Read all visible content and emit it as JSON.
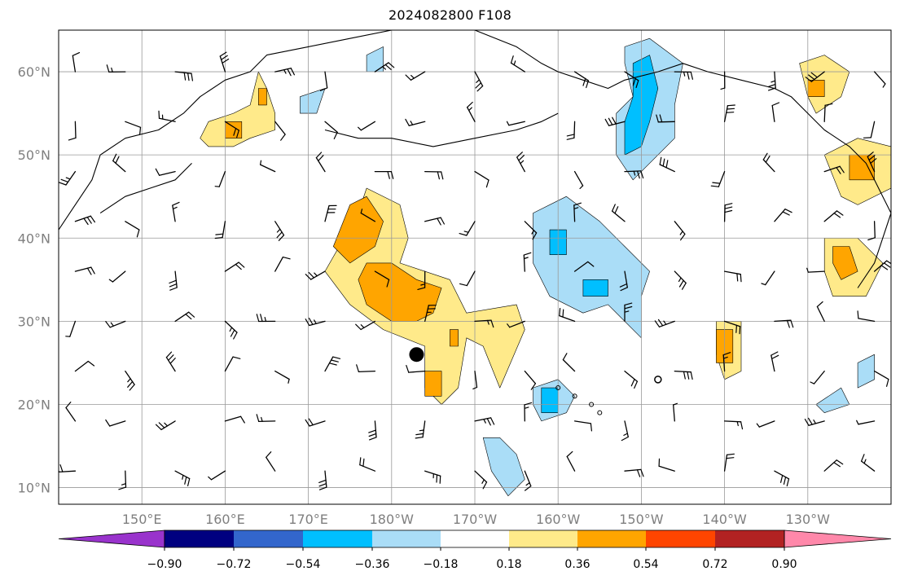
{
  "title": "2024082800 F108",
  "map": {
    "lon_range": [
      140,
      240
    ],
    "lat_range": [
      8,
      65
    ],
    "lat_ticks": [
      {
        "value": 10,
        "label": "10°N"
      },
      {
        "value": 20,
        "label": "20°N"
      },
      {
        "value": 30,
        "label": "30°N"
      },
      {
        "value": 40,
        "label": "40°N"
      },
      {
        "value": 50,
        "label": "50°N"
      },
      {
        "value": 60,
        "label": "60°N"
      }
    ],
    "lon_ticks": [
      {
        "value": 150,
        "label": "150°E"
      },
      {
        "value": 160,
        "label": "160°E"
      },
      {
        "value": 170,
        "label": "170°E"
      },
      {
        "value": 180,
        "label": "180°W"
      },
      {
        "value": 190,
        "label": "170°W"
      },
      {
        "value": 200,
        "label": "160°W"
      },
      {
        "value": 210,
        "label": "150°W"
      },
      {
        "value": 220,
        "label": "140°W"
      },
      {
        "value": 230,
        "label": "130°W"
      }
    ],
    "gridlines": true,
    "marker": {
      "lon": 183,
      "lat": 26,
      "symbol": "filled-circle",
      "color": "#000000"
    },
    "small_open_marker": {
      "lon": 212,
      "lat": 23
    }
  },
  "colorbar": {
    "colors": [
      "#9933cc",
      "#000080",
      "#3366cc",
      "#00bfff",
      "#aaddf7",
      "#ffffff",
      "#ffea8a",
      "#ffa500",
      "#ff4500",
      "#b22222",
      "#ff88aa"
    ],
    "tick_labels": [
      "−0.90",
      "−0.72",
      "−0.54",
      "−0.36",
      "−0.18",
      "0.18",
      "0.36",
      "0.54",
      "0.72",
      "0.90"
    ],
    "extend": "both"
  },
  "anomaly_fields": [
    {
      "name": "positive-central-pacific",
      "color": "#ffea8a",
      "outline": [
        [
          -4,
          43
        ],
        [
          -3,
          46
        ],
        [
          1,
          44
        ],
        [
          2,
          40
        ],
        [
          1,
          37
        ],
        [
          7,
          35
        ],
        [
          9,
          31
        ],
        [
          15,
          32
        ],
        [
          16,
          29
        ],
        [
          13,
          22
        ],
        [
          11,
          27
        ],
        [
          9,
          28
        ],
        [
          8,
          22
        ],
        [
          6,
          20
        ],
        [
          4,
          22
        ],
        [
          4,
          27
        ],
        [
          -1,
          29
        ],
        [
          -5,
          32
        ],
        [
          -8,
          36
        ]
      ]
    },
    {
      "name": "positive-central-core-west",
      "color": "#ffa500",
      "outline": [
        [
          -5,
          44
        ],
        [
          -3,
          45
        ],
        [
          -1,
          42
        ],
        [
          -2,
          39
        ],
        [
          -5,
          37
        ],
        [
          -7,
          39
        ]
      ]
    },
    {
      "name": "positive-central-core-main",
      "color": "#ffa500",
      "outline": [
        [
          -3,
          37
        ],
        [
          0,
          37
        ],
        [
          3,
          35
        ],
        [
          6,
          34
        ],
        [
          5,
          31
        ],
        [
          3,
          30
        ],
        [
          0,
          30
        ],
        [
          -3,
          32
        ],
        [
          -4,
          35
        ]
      ]
    },
    {
      "name": "positive-central-core-south",
      "color": "#ffa500",
      "outline": [
        [
          4,
          24
        ],
        [
          6,
          24
        ],
        [
          6,
          21
        ],
        [
          4,
          21
        ]
      ]
    },
    {
      "name": "positive-central-core-east",
      "color": "#ffa500",
      "outline": [
        [
          7,
          29
        ],
        [
          8,
          29
        ],
        [
          8,
          27
        ],
        [
          7,
          27
        ]
      ]
    },
    {
      "name": "positive-kamchatka",
      "color": "#ffea8a",
      "outline": [
        [
          158,
          54
        ],
        [
          161,
          55
        ],
        [
          163,
          56
        ],
        [
          164,
          60
        ],
        [
          165,
          58
        ],
        [
          166,
          55
        ],
        [
          166,
          53
        ],
        [
          163,
          52
        ],
        [
          161,
          51
        ],
        [
          158,
          51
        ],
        [
          157,
          52
        ]
      ]
    },
    {
      "name": "positive-kamchatka-core-1",
      "color": "#ffa500",
      "outline": [
        [
          160,
          54
        ],
        [
          162,
          54
        ],
        [
          162,
          52
        ],
        [
          160,
          52
        ]
      ]
    },
    {
      "name": "positive-kamchatka-core-2",
      "color": "#ffa500",
      "outline": [
        [
          164,
          58
        ],
        [
          165,
          58
        ],
        [
          165,
          56
        ],
        [
          164,
          56
        ]
      ]
    },
    {
      "name": "positive-gulf-alaska",
      "color": "#ffea8a",
      "outline": [
        [
          229,
          61
        ],
        [
          232,
          62
        ],
        [
          235,
          60
        ],
        [
          234,
          57
        ],
        [
          231,
          55
        ],
        [
          230,
          57
        ]
      ]
    },
    {
      "name": "positive-gulf-alaska-core",
      "color": "#ffa500",
      "outline": [
        [
          230,
          59
        ],
        [
          232,
          59
        ],
        [
          232,
          57
        ],
        [
          230,
          57
        ]
      ]
    },
    {
      "name": "positive-pnw",
      "color": "#ffea8a",
      "outline": [
        [
          232,
          50
        ],
        [
          236,
          52
        ],
        [
          240,
          51
        ],
        [
          240,
          46
        ],
        [
          236,
          44
        ],
        [
          234,
          45
        ]
      ]
    },
    {
      "name": "positive-pnw-core",
      "color": "#ffa500",
      "outline": [
        [
          235,
          50
        ],
        [
          238,
          50
        ],
        [
          238,
          47
        ],
        [
          235,
          47
        ]
      ]
    },
    {
      "name": "positive-california",
      "color": "#ffea8a",
      "outline": [
        [
          232,
          40
        ],
        [
          236,
          40
        ],
        [
          239,
          37
        ],
        [
          237,
          33
        ],
        [
          233,
          33
        ],
        [
          232,
          36
        ]
      ]
    },
    {
      "name": "positive-california-core",
      "color": "#ffa500",
      "outline": [
        [
          233,
          39
        ],
        [
          235,
          39
        ],
        [
          236,
          36
        ],
        [
          234,
          35
        ],
        [
          233,
          37
        ]
      ]
    },
    {
      "name": "positive-hawaii-east",
      "color": "#ffea8a",
      "outline": [
        [
          219,
          30
        ],
        [
          222,
          30
        ],
        [
          222,
          24
        ],
        [
          220,
          23
        ],
        [
          219,
          26
        ]
      ]
    },
    {
      "name": "positive-hawaii-east-core",
      "color": "#ffa500",
      "outline": [
        [
          219,
          29
        ],
        [
          221,
          29
        ],
        [
          221,
          25
        ],
        [
          219,
          25
        ]
      ]
    },
    {
      "name": "negative-gulf-north",
      "color": "#aaddf7",
      "outline": [
        [
          208,
          63
        ],
        [
          211,
          64
        ],
        [
          215,
          61
        ],
        [
          214,
          56
        ],
        [
          214,
          52
        ],
        [
          211,
          49
        ],
        [
          209,
          47
        ],
        [
          207,
          50
        ],
        [
          207,
          55
        ],
        [
          209,
          57
        ],
        [
          208,
          61
        ]
      ]
    },
    {
      "name": "negative-gulf-north-core",
      "color": "#00bfff",
      "outline": [
        [
          209,
          61
        ],
        [
          211,
          62
        ],
        [
          212,
          58
        ],
        [
          211,
          54
        ],
        [
          210,
          51
        ],
        [
          208,
          50
        ],
        [
          208,
          54
        ],
        [
          209,
          57
        ]
      ]
    },
    {
      "name": "negative-central-east",
      "color": "#aaddf7",
      "outline": [
        [
          197,
          43
        ],
        [
          201,
          45
        ],
        [
          205,
          42
        ],
        [
          208,
          39
        ],
        [
          211,
          36
        ],
        [
          210,
          33
        ],
        [
          210,
          28
        ],
        [
          206,
          32
        ],
        [
          203,
          31
        ],
        [
          199,
          33
        ],
        [
          197,
          37
        ]
      ]
    },
    {
      "name": "negative-central-east-core-1",
      "color": "#00bfff",
      "outline": [
        [
          199,
          41
        ],
        [
          201,
          41
        ],
        [
          201,
          38
        ],
        [
          199,
          38
        ]
      ]
    },
    {
      "name": "negative-central-east-core-2",
      "color": "#00bfff",
      "outline": [
        [
          203,
          35
        ],
        [
          206,
          35
        ],
        [
          206,
          33
        ],
        [
          203,
          33
        ]
      ]
    },
    {
      "name": "negative-hawaii",
      "color": "#aaddf7",
      "outline": [
        [
          197,
          22
        ],
        [
          200,
          23
        ],
        [
          202,
          21
        ],
        [
          201,
          19
        ],
        [
          198,
          18
        ],
        [
          197,
          20
        ]
      ]
    },
    {
      "name": "negative-hawaii-core",
      "color": "#00bfff",
      "outline": [
        [
          198,
          22
        ],
        [
          200,
          22
        ],
        [
          200,
          19
        ],
        [
          198,
          19
        ]
      ]
    },
    {
      "name": "negative-south",
      "color": "#aaddf7",
      "outline": [
        [
          191,
          16
        ],
        [
          193,
          16
        ],
        [
          195,
          14
        ],
        [
          196,
          11
        ],
        [
          194,
          9
        ],
        [
          192,
          12
        ]
      ]
    },
    {
      "name": "negative-aleutian",
      "color": "#aaddf7",
      "outline": [
        [
          169,
          57
        ],
        [
          172,
          58
        ],
        [
          171,
          55
        ],
        [
          169,
          55
        ]
      ]
    },
    {
      "name": "negative-bering",
      "color": "#aaddf7",
      "outline": [
        [
          177,
          62
        ],
        [
          179,
          63
        ],
        [
          179,
          60
        ],
        [
          177,
          60
        ]
      ]
    },
    {
      "name": "negative-southeast",
      "color": "#aaddf7",
      "outline": [
        [
          231,
          20
        ],
        [
          234,
          22
        ],
        [
          235,
          20
        ],
        [
          232,
          19
        ]
      ]
    },
    {
      "name": "negative-baja",
      "color": "#aaddf7",
      "outline": [
        [
          236,
          25
        ],
        [
          238,
          26
        ],
        [
          238,
          23
        ],
        [
          236,
          22
        ]
      ]
    }
  ],
  "coastlines": [
    {
      "name": "asia-kamchatka",
      "points": [
        [
          140,
          41
        ],
        [
          142,
          44
        ],
        [
          144,
          47
        ],
        [
          145,
          50
        ],
        [
          148,
          52
        ],
        [
          152,
          53
        ],
        [
          155,
          55
        ],
        [
          157,
          57
        ],
        [
          160,
          59
        ],
        [
          163,
          60
        ],
        [
          165,
          62
        ],
        [
          170,
          63
        ],
        [
          175,
          64
        ],
        [
          180,
          65
        ]
      ]
    },
    {
      "name": "kuril-chain",
      "points": [
        [
          145,
          43
        ],
        [
          148,
          45
        ],
        [
          151,
          46
        ],
        [
          154,
          47
        ],
        [
          156,
          49
        ]
      ]
    },
    {
      "name": "alaska-coast",
      "points": [
        [
          190,
          65
        ],
        [
          195,
          63
        ],
        [
          198,
          61
        ],
        [
          200,
          60
        ],
        [
          203,
          59
        ],
        [
          206,
          58
        ],
        [
          208,
          59
        ],
        [
          212,
          60
        ],
        [
          215,
          61
        ],
        [
          218,
          60
        ],
        [
          222,
          59
        ],
        [
          226,
          58
        ],
        [
          228,
          57
        ],
        [
          230,
          55
        ],
        [
          232,
          53
        ],
        [
          235,
          51
        ],
        [
          237,
          49
        ],
        [
          238,
          47
        ],
        [
          239,
          45
        ],
        [
          240,
          43
        ]
      ]
    },
    {
      "name": "aleutian-chain",
      "points": [
        [
          172,
          53
        ],
        [
          176,
          52
        ],
        [
          180,
          52
        ],
        [
          185,
          51
        ],
        [
          190,
          52
        ],
        [
          195,
          53
        ],
        [
          198,
          54
        ],
        [
          200,
          55
        ]
      ]
    },
    {
      "name": "us-west-coast",
      "points": [
        [
          240,
          43
        ],
        [
          239,
          40
        ],
        [
          238,
          37
        ],
        [
          236,
          34
        ]
      ]
    }
  ],
  "islands": [
    {
      "name": "hawaii-island-1",
      "lon": 200,
      "lat": 22
    },
    {
      "name": "hawaii-island-2",
      "lon": 202,
      "lat": 21
    },
    {
      "name": "hawaii-island-3",
      "lon": 204,
      "lat": 20
    },
    {
      "name": "hawaii-island-4",
      "lon": 205,
      "lat": 19
    }
  ]
}
